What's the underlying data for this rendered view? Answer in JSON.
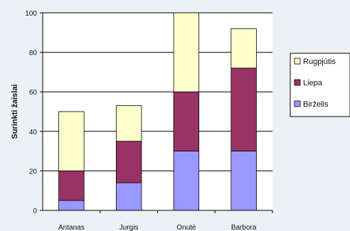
{
  "chart_data": {
    "type": "bar",
    "stacked": true,
    "categories": [
      "Antanas",
      "Jurgis",
      "Onutė",
      "Barbora"
    ],
    "series": [
      {
        "name": "Birželis",
        "color": "#9999ff",
        "values": [
          5,
          14,
          30,
          30
        ]
      },
      {
        "name": "Liepa",
        "color": "#993366",
        "values": [
          15,
          21,
          30,
          42
        ]
      },
      {
        "name": "Rugpjūtis",
        "color": "#ffffcc",
        "values": [
          30,
          18,
          40,
          20
        ]
      }
    ],
    "ylabel": "Surinkti žaislai",
    "ylim": [
      0,
      100
    ],
    "yticks": [
      0,
      20,
      40,
      60,
      80,
      100
    ],
    "grid": "major y gridlines",
    "legend_position": "right"
  }
}
